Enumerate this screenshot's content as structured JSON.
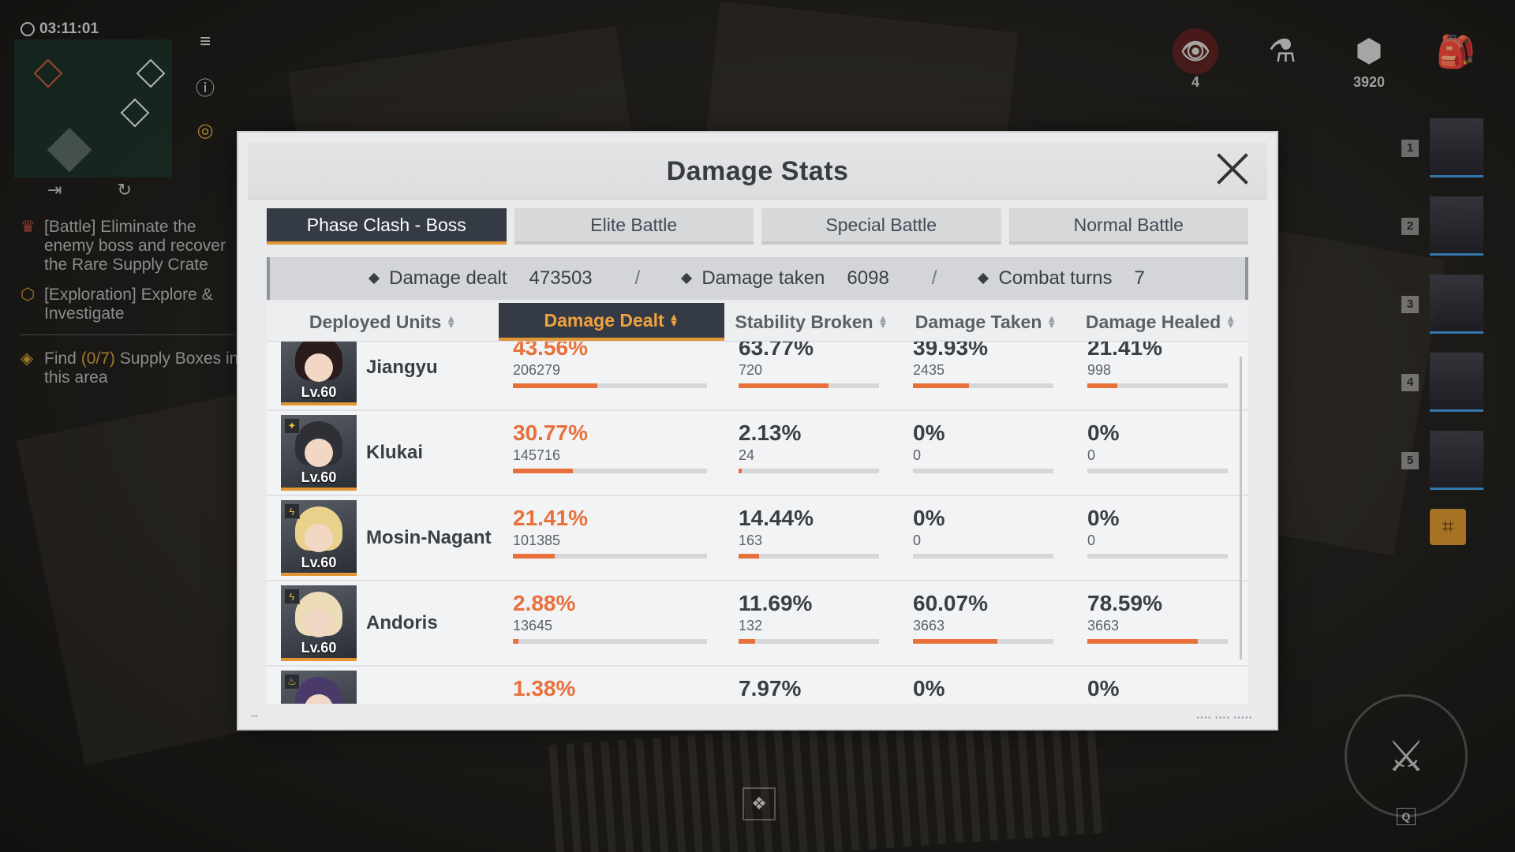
{
  "hud": {
    "clock": "03:11:01",
    "missions": [
      {
        "text": "[Battle] Eliminate the enemy boss and recover the Rare Supply Crate"
      },
      {
        "text": "[Exploration] Explore & Investigate"
      }
    ],
    "find_prefix": "Find",
    "find_count": "(0/7)",
    "find_suffix": "Supply Boxes in this area",
    "eye_count": "4",
    "currency": "3920",
    "team_slots": [
      "1",
      "2",
      "3",
      "4",
      "5"
    ],
    "q_key": "Q"
  },
  "modal": {
    "title": "Damage Stats",
    "tabs": [
      "Phase Clash - Boss",
      "Elite Battle",
      "Special Battle",
      "Normal Battle"
    ],
    "summary": {
      "damage_dealt_label": "Damage dealt",
      "damage_dealt_value": "473503",
      "damage_taken_label": "Damage taken",
      "damage_taken_value": "6098",
      "combat_turns_label": "Combat turns",
      "combat_turns_value": "7",
      "separator": "/"
    },
    "columns": {
      "units": "Deployed Units",
      "damage_dealt": "Damage Dealt",
      "stability_broken": "Stability Broken",
      "damage_taken": "Damage Taken",
      "damage_healed": "Damage Healed"
    },
    "rows": [
      {
        "name": "Jiangyu",
        "level": "Lv.60",
        "dd_pct": "43.56%",
        "dd_raw": "206279",
        "dd_fill": 0.4356,
        "sb_pct": "63.77%",
        "sb_raw": "720",
        "sb_fill": 0.6377,
        "dt_pct": "39.93%",
        "dt_raw": "2435",
        "dt_fill": 0.3993,
        "dh_pct": "21.41%",
        "dh_raw": "998",
        "dh_fill": 0.2141,
        "hair": "#2a1c1a",
        "elem": ""
      },
      {
        "name": "Klukai",
        "level": "Lv.60",
        "dd_pct": "30.77%",
        "dd_raw": "145716",
        "dd_fill": 0.3077,
        "sb_pct": "2.13%",
        "sb_raw": "24",
        "sb_fill": 0.0213,
        "dt_pct": "0%",
        "dt_raw": "0",
        "dt_fill": 0,
        "dh_pct": "0%",
        "dh_raw": "0",
        "dh_fill": 0,
        "hair": "#2e3036",
        "elem": "✦"
      },
      {
        "name": "Mosin-Nagant",
        "level": "Lv.60",
        "dd_pct": "21.41%",
        "dd_raw": "101385",
        "dd_fill": 0.2141,
        "sb_pct": "14.44%",
        "sb_raw": "163",
        "sb_fill": 0.1444,
        "dt_pct": "0%",
        "dt_raw": "0",
        "dt_fill": 0,
        "dh_pct": "0%",
        "dh_raw": "0",
        "dh_fill": 0,
        "hair": "#e8d28c",
        "elem": "ϟ"
      },
      {
        "name": "Andoris",
        "level": "Lv.60",
        "dd_pct": "2.88%",
        "dd_raw": "13645",
        "dd_fill": 0.0288,
        "sb_pct": "11.69%",
        "sb_raw": "132",
        "sb_fill": 0.1169,
        "dt_pct": "60.07%",
        "dt_raw": "3663",
        "dt_fill": 0.6007,
        "dh_pct": "78.59%",
        "dh_raw": "3663",
        "dh_fill": 0.7859,
        "hair": "#ecdcb8",
        "elem": "ϟ"
      },
      {
        "name": "",
        "level": "",
        "dd_pct": "1.38%",
        "dd_raw": "",
        "dd_fill": 0,
        "sb_pct": "7.97%",
        "sb_raw": "",
        "sb_fill": 0,
        "dt_pct": "0%",
        "dt_raw": "",
        "dt_fill": 0,
        "dh_pct": "0%",
        "dh_raw": "",
        "dh_fill": 0,
        "hair": "#4a3a6a",
        "elem": "♨"
      }
    ]
  },
  "colors": {
    "accent_orange": "#e19535",
    "bar_orange": "#e8703a",
    "dark_tab": "#343b44"
  }
}
